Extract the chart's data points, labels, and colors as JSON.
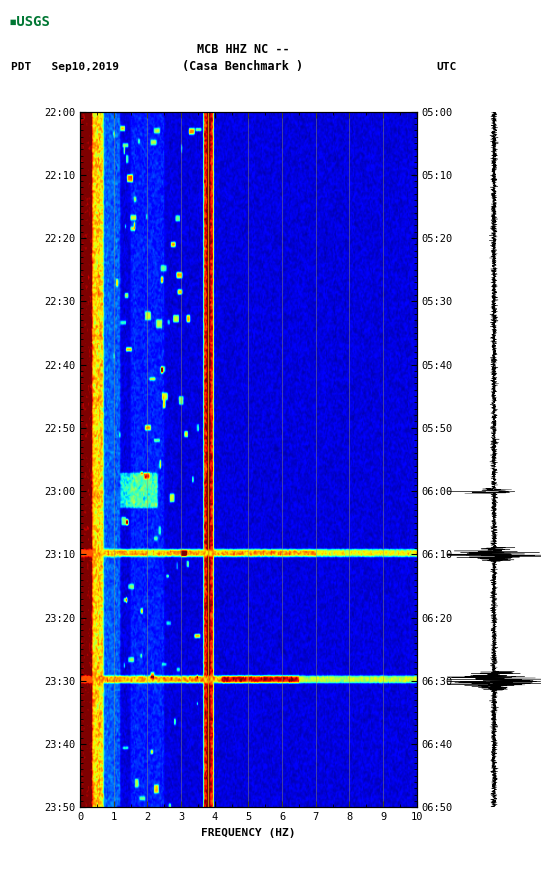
{
  "title_line1": "MCB HHZ NC --",
  "title_line2": "(Casa Benchmark )",
  "date_label": "PDT   Sep10,2019",
  "utc_label": "UTC",
  "xlabel": "FREQUENCY (HZ)",
  "freq_min": 0,
  "freq_max": 10,
  "time_ticks_pdt": [
    "22:00",
    "22:10",
    "22:20",
    "22:30",
    "22:40",
    "22:50",
    "23:00",
    "23:10",
    "23:20",
    "23:30",
    "23:40",
    "23:50"
  ],
  "time_ticks_utc": [
    "05:00",
    "05:10",
    "05:20",
    "05:30",
    "05:40",
    "05:50",
    "06:00",
    "06:10",
    "06:20",
    "06:30",
    "06:40",
    "06:50"
  ],
  "freq_ticks": [
    0,
    1,
    2,
    3,
    4,
    5,
    6,
    7,
    8,
    9,
    10
  ],
  "bg_color": "#ffffff",
  "spectrogram_cmap": "jet",
  "grid_line_color": "#888855",
  "grid_line_freqs": [
    1.0,
    2.0,
    3.0,
    3.8,
    5.0,
    6.0,
    7.0,
    8.0,
    9.0
  ],
  "yellow_line_freq": 3.8,
  "n_time": 600,
  "n_freq": 300,
  "seed": 42
}
